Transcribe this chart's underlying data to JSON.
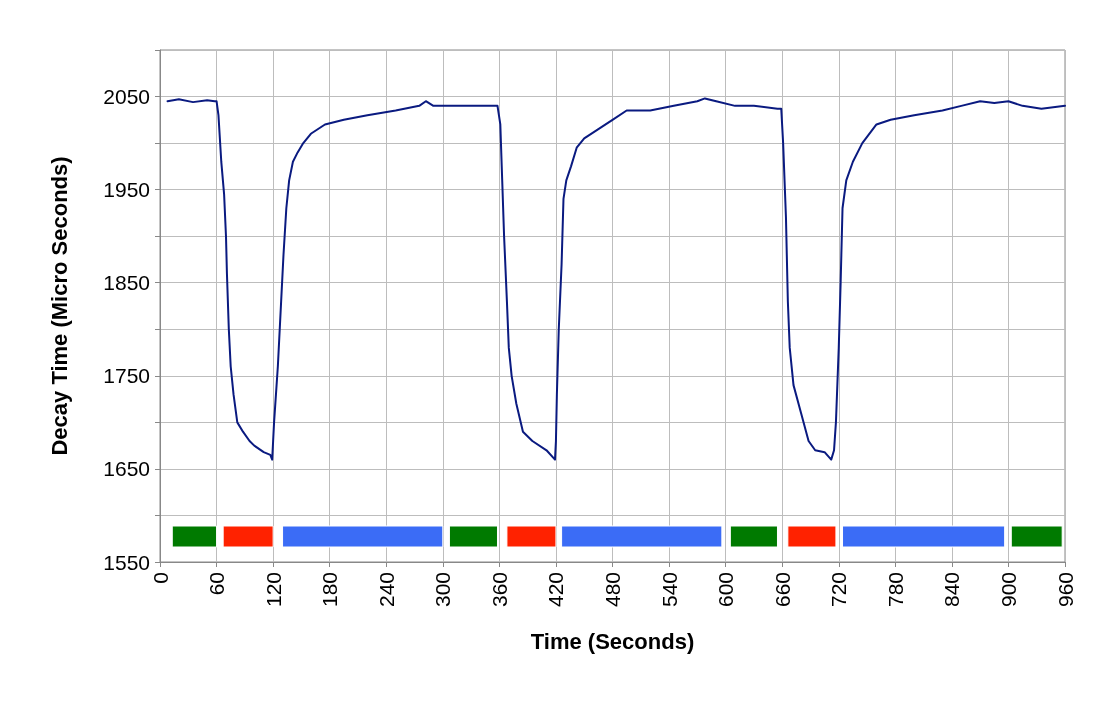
{
  "chart_data": {
    "type": "line",
    "xlabel": "Time (Seconds)",
    "ylabel": "Decay Time (Micro Seconds)",
    "xlim": [
      0,
      960
    ],
    "xticks": [
      0,
      60,
      120,
      180,
      240,
      300,
      360,
      420,
      480,
      540,
      600,
      660,
      720,
      780,
      840,
      900,
      960
    ],
    "ylim": [
      1550,
      2100
    ],
    "yticks": [
      1550,
      {
        "value": 1600,
        "label": null
      },
      1650,
      {
        "value": 1700,
        "label": null
      },
      1750,
      {
        "value": 1800,
        "label": null
      },
      1850,
      {
        "value": 1900,
        "label": null
      },
      1950,
      {
        "value": 2000,
        "label": null
      },
      2050,
      {
        "value": 2100,
        "label": null
      }
    ],
    "grid": true,
    "marker": "none",
    "line_style": "solid",
    "series": [
      {
        "color": "#0a1a80",
        "x": [
          8,
          20,
          35,
          50,
          58,
          60,
          62,
          65,
          68,
          70,
          71,
          73,
          75,
          78,
          82,
          88,
          95,
          100,
          110,
          117,
          119,
          120,
          121,
          125,
          128,
          131,
          134,
          137,
          141,
          146,
          152,
          160,
          175,
          195,
          220,
          250,
          275,
          282,
          290,
          300,
          330,
          358,
          361,
          363,
          365,
          368,
          370,
          373,
          378,
          385,
          395,
          410,
          419,
          420,
          421,
          423,
          426,
          428,
          431,
          436,
          442,
          450,
          465,
          480,
          495,
          520,
          545,
          570,
          578,
          590,
          610,
          630,
          655,
          659,
          661,
          664,
          666,
          668,
          672,
          680,
          688,
          695,
          705,
          712,
          715,
          717,
          720,
          722,
          724,
          728,
          735,
          745,
          760,
          775,
          800,
          830,
          850,
          870,
          885,
          900,
          915,
          935,
          960
        ],
        "values": [
          2045,
          2047,
          2044,
          2046,
          2045,
          2045,
          2030,
          1980,
          1945,
          1900,
          1860,
          1800,
          1760,
          1730,
          1700,
          1690,
          1680,
          1675,
          1668,
          1665,
          1660,
          1680,
          1700,
          1760,
          1820,
          1880,
          1930,
          1960,
          1980,
          1990,
          2000,
          2010,
          2020,
          2025,
          2030,
          2035,
          2040,
          2045,
          2040,
          2040,
          2040,
          2040,
          2020,
          1960,
          1900,
          1830,
          1780,
          1750,
          1720,
          1690,
          1680,
          1670,
          1660,
          1680,
          1730,
          1800,
          1870,
          1940,
          1960,
          1975,
          1995,
          2005,
          2015,
          2025,
          2035,
          2035,
          2040,
          2045,
          2048,
          2045,
          2040,
          2040,
          2037,
          2037,
          2000,
          1920,
          1830,
          1780,
          1740,
          1710,
          1680,
          1670,
          1668,
          1660,
          1670,
          1700,
          1780,
          1850,
          1930,
          1960,
          1980,
          2000,
          2020,
          2025,
          2030,
          2035,
          2040,
          2045,
          2043,
          2045,
          2040,
          2037,
          2040
        ]
      }
    ],
    "bands": [
      {
        "axis": "x",
        "from": 13,
        "to": 60,
        "color": "#007a00"
      },
      {
        "axis": "x",
        "from": 67,
        "to": 120,
        "color": "#ff2200"
      },
      {
        "axis": "x",
        "from": 130,
        "to": 300,
        "color": "#3b6cf6"
      },
      {
        "axis": "x",
        "from": 307,
        "to": 358,
        "color": "#007a00"
      },
      {
        "axis": "x",
        "from": 368,
        "to": 420,
        "color": "#ff2200"
      },
      {
        "axis": "x",
        "from": 426,
        "to": 596,
        "color": "#3b6cf6"
      },
      {
        "axis": "x",
        "from": 605,
        "to": 655,
        "color": "#007a00"
      },
      {
        "axis": "x",
        "from": 666,
        "to": 717,
        "color": "#ff2200"
      },
      {
        "axis": "x",
        "from": 724,
        "to": 896,
        "color": "#3b6cf6"
      },
      {
        "axis": "x",
        "from": 903,
        "to": 957,
        "color": "#007a00"
      }
    ]
  }
}
